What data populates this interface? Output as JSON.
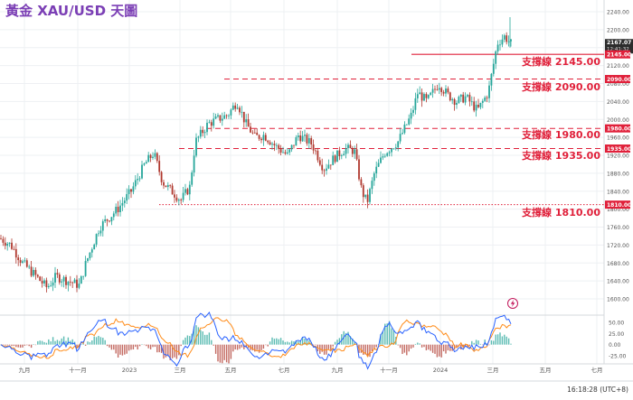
{
  "title": "黃金 XAU/USD 天圖",
  "colors": {
    "title": "#7b3fb5",
    "up": "#26a69a",
    "down": "#b0392f",
    "support": "#e0203a",
    "macd_fast": "#2962ff",
    "macd_slow": "#ff8c1a",
    "grid": "#eef0f3"
  },
  "price_axis": {
    "ticks": [
      "2240.00",
      "2200.00",
      "2160.00",
      "2120.00",
      "2080.00",
      "2040.00",
      "2000.00",
      "1960.00",
      "1920.00",
      "1880.00",
      "1840.00",
      "1800.00",
      "1760.00",
      "1720.00",
      "1680.00",
      "1640.00",
      "1600.00"
    ],
    "current_price": "2167.07",
    "countdown": "12:41:32"
  },
  "macd_axis": {
    "ticks": [
      "50.00",
      "25.00",
      "0.00",
      "-25.00"
    ]
  },
  "time_axis": {
    "labels": [
      "九月",
      "十一月",
      "2023",
      "三月",
      "五月",
      "七月",
      "九月",
      "十一月",
      "2024",
      "三月",
      "五月",
      "七月"
    ]
  },
  "status": {
    "clock": "16:18:28 (UTC+8)"
  },
  "supports": [
    {
      "label": "支撐線 2145.00",
      "price": 2145,
      "badge": "2145.00",
      "style": "solid"
    },
    {
      "label": "支撐線 2090.00",
      "price": 2090,
      "badge": "2090.00",
      "style": "dashed"
    },
    {
      "label": "支撐線 1980.00",
      "price": 1980,
      "badge": "1980.00",
      "style": "dashed"
    },
    {
      "label": "支撐線 1935.00",
      "price": 1935,
      "badge": "1935.00",
      "style": "dashed"
    },
    {
      "label": "支撐線 1810.00",
      "price": 1810,
      "badge": "1810.00",
      "style": "dotted"
    }
  ],
  "icons": {
    "alert": "lightning-bolt-icon"
  },
  "chart_data": {
    "type": "candlestick",
    "title": "黃金 XAU/USD 天圖",
    "ylim": [
      1570,
      2260
    ],
    "series": [
      {
        "name": "XAU/USD",
        "x": [
          "九月",
          "十一月",
          "2023",
          "三月",
          "五月",
          "七月",
          "九月",
          "十一月",
          "2024",
          "三月"
        ],
        "close": [
          1720,
          1650,
          1830,
          1820,
          2020,
          1920,
          1830,
          2050,
          2030,
          2167.07
        ]
      }
    ],
    "support_levels": [
      2145,
      2090,
      1980,
      1935,
      1810
    ],
    "current_price": 2167.07,
    "macd_ylim": [
      -40,
      60
    ]
  }
}
